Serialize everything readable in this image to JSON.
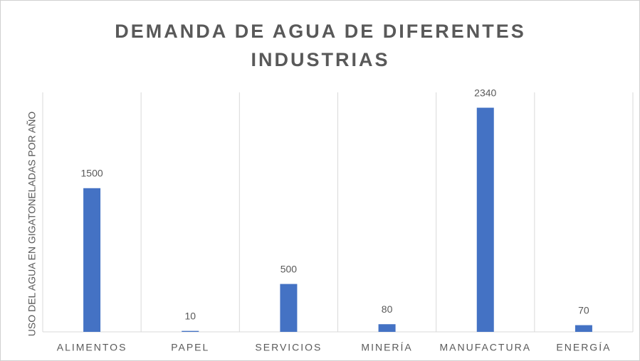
{
  "chart_data": {
    "type": "bar",
    "title": "DEMANDA DE AGUA DE DIFERENTES INDUSTRIAS",
    "y_label": "USO DEL AGUA EN GIGATONELADAS POR AÑO",
    "categories": [
      "ALIMENTOS",
      "PAPEL",
      "SERVICIOS",
      "MINERÍA",
      "MANUFACTURA",
      "ENERGÍA"
    ],
    "values": [
      1500,
      10,
      500,
      80,
      2340,
      70
    ],
    "color": "#4472c4",
    "ylim": [
      0,
      2500
    ],
    "grid": true
  }
}
